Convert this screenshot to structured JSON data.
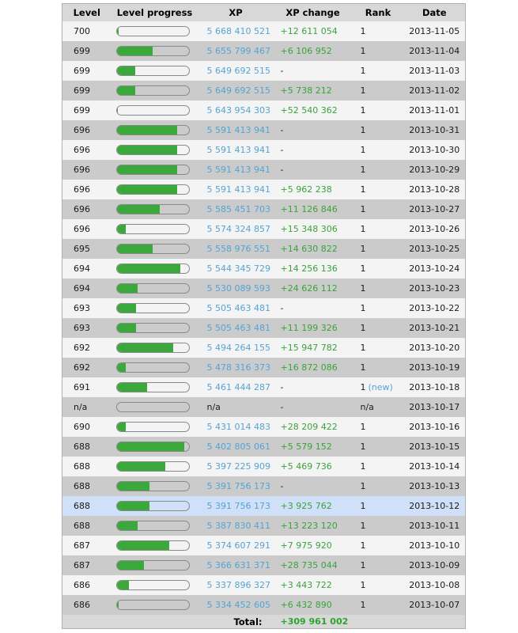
{
  "colors": {
    "link_blue": "#54a4d4",
    "change_green": "#3aa33a",
    "total_green": "#2ca32c",
    "bar_fill_green": "#3aa83a",
    "row_light": "#f4f4f4",
    "row_dark": "#cbcbcb",
    "row_highlight": "#cfe0f8",
    "header_bg": "#d8d8d8"
  },
  "table": {
    "columns": [
      "Level",
      "Level progress",
      "XP",
      "XP change",
      "Rank",
      "Date"
    ],
    "total_label": "Total:",
    "total_value": "+309 961 002",
    "rows": [
      {
        "level": "700",
        "progress": 3,
        "xp": "5 668 410 521",
        "change": "+12 611 054",
        "rank": "1",
        "rank_note": "",
        "date": "2013-11-05",
        "variant": "light"
      },
      {
        "level": "699",
        "progress": 50,
        "xp": "5 655 799 467",
        "change": "+6 106 952",
        "rank": "1",
        "rank_note": "",
        "date": "2013-11-04",
        "variant": "dark"
      },
      {
        "level": "699",
        "progress": 26,
        "xp": "5 649 692 515",
        "change": "-",
        "rank": "1",
        "rank_note": "",
        "date": "2013-11-03",
        "variant": "light"
      },
      {
        "level": "699",
        "progress": 26,
        "xp": "5 649 692 515",
        "change": "+5 738 212",
        "rank": "1",
        "rank_note": "",
        "date": "2013-11-02",
        "variant": "dark"
      },
      {
        "level": "699",
        "progress": 2,
        "xp": "5 643 954 303",
        "change": "+52 540 362",
        "rank": "1",
        "rank_note": "",
        "date": "2013-11-01",
        "variant": "light"
      },
      {
        "level": "696",
        "progress": 84,
        "xp": "5 591 413 941",
        "change": "-",
        "rank": "1",
        "rank_note": "",
        "date": "2013-10-31",
        "variant": "dark"
      },
      {
        "level": "696",
        "progress": 84,
        "xp": "5 591 413 941",
        "change": "-",
        "rank": "1",
        "rank_note": "",
        "date": "2013-10-30",
        "variant": "light"
      },
      {
        "level": "696",
        "progress": 84,
        "xp": "5 591 413 941",
        "change": "-",
        "rank": "1",
        "rank_note": "",
        "date": "2013-10-29",
        "variant": "dark"
      },
      {
        "level": "696",
        "progress": 84,
        "xp": "5 591 413 941",
        "change": "+5 962 238",
        "rank": "1",
        "rank_note": "",
        "date": "2013-10-28",
        "variant": "light"
      },
      {
        "level": "696",
        "progress": 60,
        "xp": "5 585 451 703",
        "change": "+11 126 846",
        "rank": "1",
        "rank_note": "",
        "date": "2013-10-27",
        "variant": "dark"
      },
      {
        "level": "696",
        "progress": 13,
        "xp": "5 574 324 857",
        "change": "+15 348 306",
        "rank": "1",
        "rank_note": "",
        "date": "2013-10-26",
        "variant": "light"
      },
      {
        "level": "695",
        "progress": 50,
        "xp": "5 558 976 551",
        "change": "+14 630 822",
        "rank": "1",
        "rank_note": "",
        "date": "2013-10-25",
        "variant": "dark"
      },
      {
        "level": "694",
        "progress": 89,
        "xp": "5 544 345 729",
        "change": "+14 256 136",
        "rank": "1",
        "rank_note": "",
        "date": "2013-10-24",
        "variant": "light"
      },
      {
        "level": "694",
        "progress": 29,
        "xp": "5 530 089 593",
        "change": "+24 626 112",
        "rank": "1",
        "rank_note": "",
        "date": "2013-10-23",
        "variant": "dark"
      },
      {
        "level": "693",
        "progress": 27,
        "xp": "5 505 463 481",
        "change": "-",
        "rank": "1",
        "rank_note": "",
        "date": "2013-10-22",
        "variant": "light"
      },
      {
        "level": "693",
        "progress": 27,
        "xp": "5 505 463 481",
        "change": "+11 199 326",
        "rank": "1",
        "rank_note": "",
        "date": "2013-10-21",
        "variant": "dark"
      },
      {
        "level": "692",
        "progress": 79,
        "xp": "5 494 264 155",
        "change": "+15 947 782",
        "rank": "1",
        "rank_note": "",
        "date": "2013-10-20",
        "variant": "light"
      },
      {
        "level": "692",
        "progress": 13,
        "xp": "5 478 316 373",
        "change": "+16 872 086",
        "rank": "1",
        "rank_note": "",
        "date": "2013-10-19",
        "variant": "dark"
      },
      {
        "level": "691",
        "progress": 42,
        "xp": "5 461 444 287",
        "change": "-",
        "rank": "1",
        "rank_note": "(new)",
        "date": "2013-10-18",
        "variant": "light"
      },
      {
        "level": "n/a",
        "progress": 0,
        "xp": "n/a",
        "change": "-",
        "rank": "n/a",
        "rank_note": "",
        "date": "2013-10-17",
        "variant": "dark"
      },
      {
        "level": "690",
        "progress": 13,
        "xp": "5 431 014 483",
        "change": "+28 209 422",
        "rank": "1",
        "rank_note": "",
        "date": "2013-10-16",
        "variant": "light"
      },
      {
        "level": "688",
        "progress": 94,
        "xp": "5 402 805 061",
        "change": "+5 579 152",
        "rank": "1",
        "rank_note": "",
        "date": "2013-10-15",
        "variant": "dark"
      },
      {
        "level": "688",
        "progress": 68,
        "xp": "5 397 225 909",
        "change": "+5 469 736",
        "rank": "1",
        "rank_note": "",
        "date": "2013-10-14",
        "variant": "light"
      },
      {
        "level": "688",
        "progress": 46,
        "xp": "5 391 756 173",
        "change": "-",
        "rank": "1",
        "rank_note": "",
        "date": "2013-10-13",
        "variant": "dark"
      },
      {
        "level": "688",
        "progress": 46,
        "xp": "5 391 756 173",
        "change": "+3 925 762",
        "rank": "1",
        "rank_note": "",
        "date": "2013-10-12",
        "variant": "highlight"
      },
      {
        "level": "688",
        "progress": 29,
        "xp": "5 387 830 411",
        "change": "+13 223 120",
        "rank": "1",
        "rank_note": "",
        "date": "2013-10-11",
        "variant": "dark"
      },
      {
        "level": "687",
        "progress": 73,
        "xp": "5 374 607 291",
        "change": "+7 975 920",
        "rank": "1",
        "rank_note": "",
        "date": "2013-10-10",
        "variant": "light"
      },
      {
        "level": "687",
        "progress": 38,
        "xp": "5 366 631 371",
        "change": "+28 735 044",
        "rank": "1",
        "rank_note": "",
        "date": "2013-10-09",
        "variant": "dark"
      },
      {
        "level": "686",
        "progress": 17,
        "xp": "5 337 896 327",
        "change": "+3 443 722",
        "rank": "1",
        "rank_note": "",
        "date": "2013-10-08",
        "variant": "light"
      },
      {
        "level": "686",
        "progress": 3,
        "xp": "5 334 452 605",
        "change": "+6 432 890",
        "rank": "1",
        "rank_note": "",
        "date": "2013-10-07",
        "variant": "dark"
      }
    ]
  }
}
